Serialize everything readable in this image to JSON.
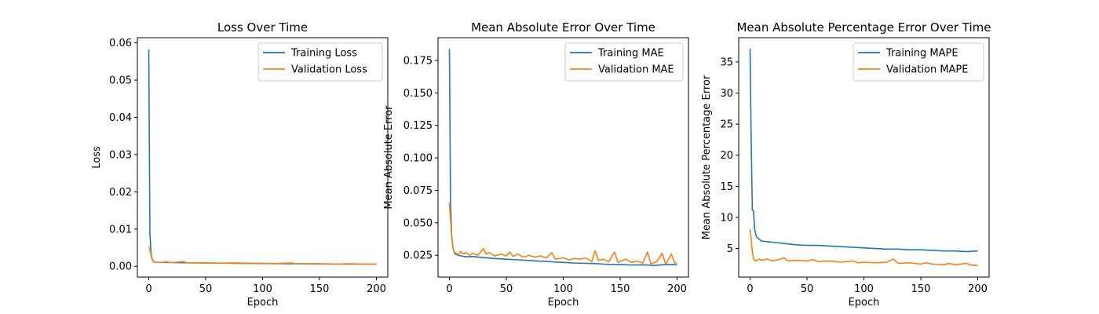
{
  "chart_data": [
    {
      "type": "line",
      "title": "Loss Over Time",
      "xlabel": "Epoch",
      "ylabel": "Loss",
      "xlim": [
        -10,
        210
      ],
      "ylim": [
        -0.0029,
        0.0614
      ],
      "xticks": [
        0,
        50,
        100,
        150,
        200
      ],
      "yticks": [
        0.0,
        0.01,
        0.02,
        0.03,
        0.04,
        0.05,
        0.06
      ],
      "ytick_labels": [
        "0.00",
        "0.01",
        "0.02",
        "0.03",
        "0.04",
        "0.05",
        "0.06"
      ],
      "legend_position": "top-right",
      "colors": [
        "#1f77b4",
        "#ff7f0e"
      ],
      "series": [
        {
          "name": "Training Loss",
          "points": [
            [
              0,
              0.0582
            ],
            [
              1,
              0.009
            ],
            [
              2,
              0.0035
            ],
            [
              3,
              0.0019
            ],
            [
              4,
              0.0013
            ],
            [
              6,
              0.0011
            ],
            [
              10,
              0.00105
            ],
            [
              20,
              0.001
            ],
            [
              30,
              0.00095
            ],
            [
              50,
              0.0009
            ],
            [
              75,
              0.0008
            ],
            [
              100,
              0.00075
            ],
            [
              125,
              0.0007
            ],
            [
              150,
              0.00065
            ],
            [
              175,
              0.0006
            ],
            [
              200,
              0.0006
            ]
          ]
        },
        {
          "name": "Validation Loss",
          "points": [
            [
              0,
              0.0053
            ],
            [
              1,
              0.0045
            ],
            [
              2,
              0.003
            ],
            [
              3,
              0.0018
            ],
            [
              4,
              0.0012
            ],
            [
              6,
              0.0011
            ],
            [
              10,
              0.001
            ],
            [
              15,
              0.0012
            ],
            [
              20,
              0.001
            ],
            [
              30,
              0.00125
            ],
            [
              35,
              0.0009
            ],
            [
              50,
              0.001
            ],
            [
              60,
              0.0008
            ],
            [
              75,
              0.0009
            ],
            [
              90,
              0.0008
            ],
            [
              100,
              0.0008
            ],
            [
              110,
              0.0007
            ],
            [
              125,
              0.0009
            ],
            [
              130,
              0.0007
            ],
            [
              150,
              0.0007
            ],
            [
              165,
              0.0006
            ],
            [
              175,
              0.0007
            ],
            [
              185,
              0.0006
            ],
            [
              200,
              0.0006
            ]
          ]
        }
      ]
    },
    {
      "type": "line",
      "title": "Mean Absolute Error Over Time",
      "xlabel": "Epoch",
      "ylabel": "Mean Absolute Error",
      "xlim": [
        -10,
        210
      ],
      "ylim": [
        0.0082,
        0.1925
      ],
      "xticks": [
        0,
        50,
        100,
        150,
        200
      ],
      "yticks": [
        0.025,
        0.05,
        0.075,
        0.1,
        0.125,
        0.15,
        0.175
      ],
      "ytick_labels": [
        "0.025",
        "0.050",
        "0.075",
        "0.100",
        "0.125",
        "0.150",
        "0.175"
      ],
      "legend_position": "top-right",
      "colors": [
        "#1f77b4",
        "#ff7f0e"
      ],
      "series": [
        {
          "name": "Training MAE",
          "points": [
            [
              0,
              0.1838
            ],
            [
              1,
              0.065
            ],
            [
              2,
              0.04
            ],
            [
              3,
              0.031
            ],
            [
              4,
              0.028
            ],
            [
              5,
              0.026
            ],
            [
              8,
              0.025
            ],
            [
              10,
              0.0245
            ],
            [
              15,
              0.0238
            ],
            [
              20,
              0.024
            ],
            [
              30,
              0.0232
            ],
            [
              40,
              0.0225
            ],
            [
              50,
              0.022
            ],
            [
              60,
              0.0215
            ],
            [
              70,
              0.021
            ],
            [
              80,
              0.0205
            ],
            [
              90,
              0.02
            ],
            [
              100,
              0.0195
            ],
            [
              110,
              0.019
            ],
            [
              120,
              0.0188
            ],
            [
              130,
              0.0185
            ],
            [
              140,
              0.018
            ],
            [
              150,
              0.0178
            ],
            [
              160,
              0.0175
            ],
            [
              170,
              0.0176
            ],
            [
              180,
              0.0172
            ],
            [
              190,
              0.0178
            ],
            [
              200,
              0.0178
            ]
          ]
        },
        {
          "name": "Validation MAE",
          "points": [
            [
              0,
              0.0655
            ],
            [
              1,
              0.052
            ],
            [
              2,
              0.04
            ],
            [
              3,
              0.032
            ],
            [
              4,
              0.028
            ],
            [
              5,
              0.027
            ],
            [
              8,
              0.0255
            ],
            [
              10,
              0.028
            ],
            [
              12,
              0.026
            ],
            [
              15,
              0.027
            ],
            [
              18,
              0.025
            ],
            [
              20,
              0.0265
            ],
            [
              25,
              0.025
            ],
            [
              30,
              0.0302
            ],
            [
              32,
              0.026
            ],
            [
              35,
              0.027
            ],
            [
              40,
              0.0245
            ],
            [
              45,
              0.026
            ],
            [
              50,
              0.0245
            ],
            [
              53,
              0.0275
            ],
            [
              56,
              0.024
            ],
            [
              60,
              0.026
            ],
            [
              65,
              0.0235
            ],
            [
              70,
              0.025
            ],
            [
              75,
              0.0235
            ],
            [
              80,
              0.0245
            ],
            [
              85,
              0.023
            ],
            [
              90,
              0.027
            ],
            [
              93,
              0.022
            ],
            [
              100,
              0.023
            ],
            [
              105,
              0.0215
            ],
            [
              110,
              0.0225
            ],
            [
              115,
              0.022
            ],
            [
              120,
              0.023
            ],
            [
              125,
              0.02
            ],
            [
              128,
              0.0285
            ],
            [
              131,
              0.021
            ],
            [
              135,
              0.022
            ],
            [
              140,
              0.02
            ],
            [
              145,
              0.0275
            ],
            [
              148,
              0.0195
            ],
            [
              155,
              0.022
            ],
            [
              160,
              0.0195
            ],
            [
              165,
              0.0205
            ],
            [
              170,
              0.019
            ],
            [
              174,
              0.0275
            ],
            [
              177,
              0.0185
            ],
            [
              182,
              0.02
            ],
            [
              187,
              0.0265
            ],
            [
              190,
              0.018
            ],
            [
              195,
              0.026
            ],
            [
              198,
              0.019
            ],
            [
              200,
              0.019
            ]
          ]
        }
      ]
    },
    {
      "type": "line",
      "title": "Mean Absolute Percentage Error Over Time",
      "xlabel": "Epoch",
      "ylabel": "Mean Absolute Percentage Error",
      "xlim": [
        -10,
        210
      ],
      "ylim": [
        0.4,
        38.9
      ],
      "xticks": [
        0,
        50,
        100,
        150,
        200
      ],
      "yticks": [
        5,
        10,
        15,
        20,
        25,
        30,
        35
      ],
      "ytick_labels": [
        "5",
        "10",
        "15",
        "20",
        "25",
        "30",
        "35"
      ],
      "legend_position": "top-right",
      "colors": [
        "#1f77b4",
        "#ff7f0e"
      ],
      "series": [
        {
          "name": "Training MAPE",
          "points": [
            [
              0,
              37.1
            ],
            [
              1,
              22
            ],
            [
              2,
              11.2
            ],
            [
              3,
              11.1
            ],
            [
              4,
              8.2
            ],
            [
              5,
              7.2
            ],
            [
              6,
              6.8
            ],
            [
              8,
              6.5
            ],
            [
              10,
              6.2
            ],
            [
              15,
              6.1
            ],
            [
              20,
              6.0
            ],
            [
              30,
              5.8
            ],
            [
              40,
              5.6
            ],
            [
              50,
              5.5
            ],
            [
              60,
              5.5
            ],
            [
              70,
              5.4
            ],
            [
              80,
              5.3
            ],
            [
              90,
              5.2
            ],
            [
              100,
              5.1
            ],
            [
              110,
              5.0
            ],
            [
              120,
              4.9
            ],
            [
              130,
              4.9
            ],
            [
              140,
              4.8
            ],
            [
              150,
              4.8
            ],
            [
              160,
              4.7
            ],
            [
              170,
              4.6
            ],
            [
              180,
              4.6
            ],
            [
              190,
              4.5
            ],
            [
              200,
              4.6
            ]
          ]
        },
        {
          "name": "Validation MAPE",
          "points": [
            [
              0,
              8.1
            ],
            [
              1,
              6.5
            ],
            [
              2,
              4.5
            ],
            [
              3,
              3.4
            ],
            [
              4,
              3.1
            ],
            [
              5,
              3.0
            ],
            [
              8,
              3.3
            ],
            [
              10,
              3.1
            ],
            [
              15,
              3.3
            ],
            [
              20,
              3.0
            ],
            [
              25,
              3.2
            ],
            [
              30,
              3.5
            ],
            [
              33,
              3.0
            ],
            [
              40,
              3.1
            ],
            [
              50,
              3.0
            ],
            [
              55,
              3.2
            ],
            [
              60,
              2.9
            ],
            [
              70,
              3.0
            ],
            [
              80,
              2.8
            ],
            [
              90,
              3.0
            ],
            [
              95,
              2.7
            ],
            [
              100,
              2.8
            ],
            [
              110,
              2.7
            ],
            [
              120,
              2.8
            ],
            [
              126,
              3.3
            ],
            [
              130,
              2.6
            ],
            [
              140,
              2.7
            ],
            [
              150,
              2.5
            ],
            [
              155,
              2.7
            ],
            [
              160,
              2.5
            ],
            [
              170,
              2.4
            ],
            [
              175,
              2.6
            ],
            [
              180,
              2.4
            ],
            [
              190,
              2.6
            ],
            [
              195,
              2.3
            ],
            [
              200,
              2.3
            ]
          ]
        }
      ]
    }
  ]
}
